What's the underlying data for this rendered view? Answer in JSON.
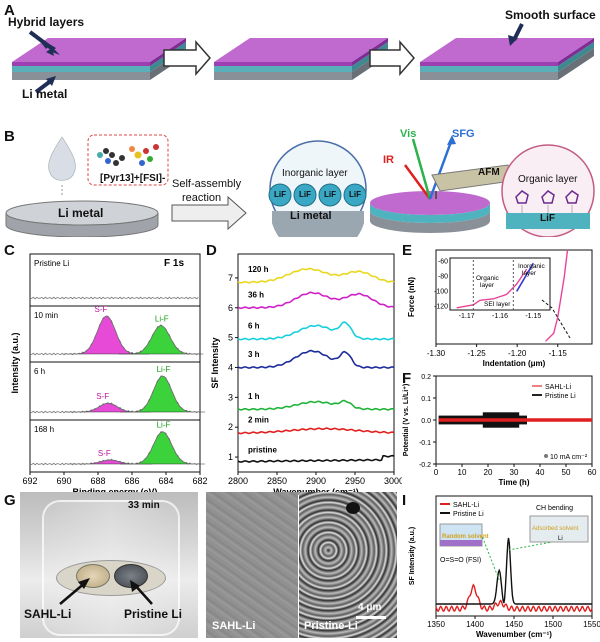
{
  "panel_A": {
    "letter": "A",
    "hybrid_layers": "Hybrid layers",
    "li_metal": "Li metal",
    "smooth_surface": "Smooth surface"
  },
  "panel_B": {
    "letter": "B",
    "molecule": "[Pyr13]+[FSI]-",
    "li_metal_disc": "Li metal",
    "arrow_text_1": "Self-assembly",
    "arrow_text_2": "reaction",
    "inorganic_layer": "Inorganic layer",
    "lif": "LiF",
    "li_metal_zoom": "Li metal",
    "vis": "Vis",
    "sfg": "SFG",
    "ir": "IR",
    "afm": "AFM",
    "organic_layer": "Organic layer",
    "lif_organic": "LiF"
  },
  "chart_data": [
    {
      "panel": "C",
      "type": "line",
      "title": "F 1s",
      "xlabel": "Binding energy (eV)",
      "ylabel": "Intensity (a.u.)",
      "x_ticks": [
        692,
        690,
        688,
        686,
        684,
        682
      ],
      "xlim": [
        692,
        682
      ],
      "subpanels": [
        {
          "label": "Pristine Li",
          "peaks": []
        },
        {
          "label": "10 min",
          "peaks": [
            {
              "name": "S-F",
              "center": 687.5,
              "height": 1.0
            },
            {
              "name": "Li-F",
              "center": 684.3,
              "height": 0.75
            }
          ]
        },
        {
          "label": "6 h",
          "peaks": [
            {
              "name": "S-F",
              "center": 687.4,
              "height": 0.22
            },
            {
              "name": "Li-F",
              "center": 684.2,
              "height": 0.9
            }
          ]
        },
        {
          "label": "168 h",
          "peaks": [
            {
              "name": "S-F",
              "center": 687.3,
              "height": 0.12
            },
            {
              "name": "Li-F",
              "center": 684.2,
              "height": 0.95
            }
          ]
        }
      ]
    },
    {
      "panel": "D",
      "type": "line",
      "xlabel": "Wavenumber (cm⁻¹)",
      "ylabel": "SF Intensity",
      "x_ticks": [
        2800,
        2850,
        2900,
        2950,
        3000
      ],
      "y_ticks": [
        1,
        2,
        3,
        4,
        5,
        6,
        7
      ],
      "xlim": [
        2800,
        3000
      ],
      "ylim": [
        0.5,
        7.8
      ],
      "series": [
        {
          "name": "pristine",
          "color": "#111111",
          "offset": 0.8
        },
        {
          "name": "2 min",
          "color": "#e0201e",
          "offset": 1.8
        },
        {
          "name": "1 h",
          "color": "#22b43a",
          "offset": 2.6
        },
        {
          "name": "3 h",
          "color": "#1c2c9c",
          "offset": 4.0
        },
        {
          "name": "6 h",
          "color": "#18d0dc",
          "offset": 4.95
        },
        {
          "name": "36 h",
          "color": "#d021c8",
          "offset": 6.0
        },
        {
          "name": "120 h",
          "color": "#e8d81e",
          "offset": 6.85
        }
      ]
    },
    {
      "panel": "E",
      "type": "line",
      "xlabel": "Indentation (μm)",
      "ylabel": "Force (nN)",
      "x_ticks": [
        -1.3,
        -1.25,
        -1.2,
        -1.15
      ],
      "y_ticks": [
        -120,
        -100,
        -80,
        -60
      ],
      "inset_x_ticks": [
        -1.17,
        -1.16,
        -1.15
      ],
      "inset_y_ticks": [
        -120,
        -100,
        -80,
        -60
      ],
      "inset_labels": [
        "Inorganic layer",
        "Organic layer",
        "SEI layer"
      ]
    },
    {
      "panel": "F",
      "type": "line",
      "xlabel": "Time (h)",
      "ylabel": "Potential (V vs. Li/Li⁺)",
      "x_ticks": [
        0,
        10,
        20,
        30,
        40,
        50,
        60
      ],
      "y_ticks": [
        -0.2,
        -0.1,
        0.0,
        0.1,
        0.2
      ],
      "series": [
        {
          "name": "SAHL-Li",
          "color": "#f08080"
        },
        {
          "name": "Pristine Li",
          "color": "#222222"
        }
      ],
      "annotation": "10 mA cm⁻²"
    },
    {
      "panel": "I",
      "type": "line",
      "xlabel": "Wavenumber (cm⁻¹)",
      "ylabel": "SF Intensity (a.u.)",
      "x_ticks": [
        1350,
        1400,
        1450,
        1500,
        1550
      ],
      "series": [
        {
          "name": "SAHL-Li",
          "color": "#e02020"
        },
        {
          "name": "Pristine Li",
          "color": "#111111"
        }
      ],
      "annotations": [
        "O=S=O (FSI)",
        "CH bending",
        "Random solvent",
        "Adsorbed solvent",
        "Li"
      ]
    }
  ],
  "panel_C": {
    "letter": "C"
  },
  "panel_D": {
    "letter": "D"
  },
  "panel_E": {
    "letter": "E"
  },
  "panel_F": {
    "letter": "F"
  },
  "panel_G": {
    "letter": "G",
    "time": "33 min",
    "left": "SAHL-Li",
    "right": "Pristine Li"
  },
  "panel_H": {
    "letter": "H",
    "left": "SAHL-Li",
    "right": "Pristine-Li",
    "scale": "4 μm"
  },
  "panel_I": {
    "letter": "I"
  }
}
